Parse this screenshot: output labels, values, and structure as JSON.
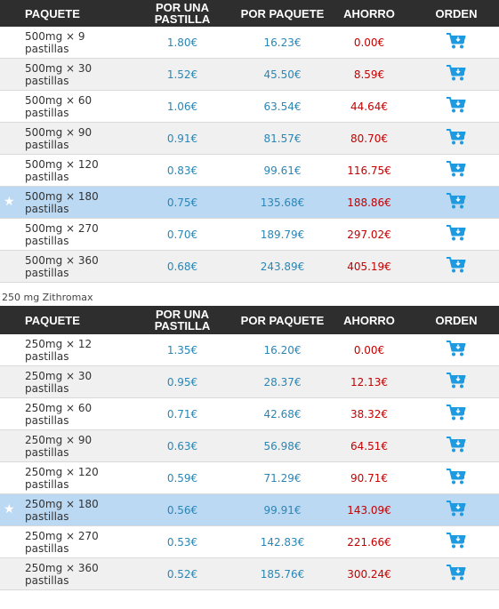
{
  "headers": {
    "package": "PAQUETE",
    "per_pill_line1": "POR UNA",
    "per_pill_line2": "PASTILLA",
    "per_package": "POR PAQUETE",
    "savings": "AHORRO",
    "order": "ORDEN"
  },
  "sections": [
    {
      "label": "",
      "rows": [
        {
          "package": "500mg × 9 pastillas",
          "per_pill": "1.80€",
          "per_package": "16.23€",
          "savings": "0.00€",
          "highlight": false
        },
        {
          "package": "500mg × 30 pastillas",
          "per_pill": "1.52€",
          "per_package": "45.50€",
          "savings": "8.59€",
          "highlight": false
        },
        {
          "package": "500mg × 60 pastillas",
          "per_pill": "1.06€",
          "per_package": "63.54€",
          "savings": "44.64€",
          "highlight": false
        },
        {
          "package": "500mg × 90 pastillas",
          "per_pill": "0.91€",
          "per_package": "81.57€",
          "savings": "80.70€",
          "highlight": false
        },
        {
          "package": "500mg × 120 pastillas",
          "per_pill": "0.83€",
          "per_package": "99.61€",
          "savings": "116.75€",
          "highlight": false
        },
        {
          "package": "500mg × 180 pastillas",
          "per_pill": "0.75€",
          "per_package": "135.68€",
          "savings": "188.86€",
          "highlight": true
        },
        {
          "package": "500mg × 270 pastillas",
          "per_pill": "0.70€",
          "per_package": "189.79€",
          "savings": "297.02€",
          "highlight": false
        },
        {
          "package": "500mg × 360 pastillas",
          "per_pill": "0.68€",
          "per_package": "243.89€",
          "savings": "405.19€",
          "highlight": false
        }
      ]
    },
    {
      "label": "250 mg Zithromax",
      "rows": [
        {
          "package": "250mg × 12 pastillas",
          "per_pill": "1.35€",
          "per_package": "16.20€",
          "savings": "0.00€",
          "highlight": false
        },
        {
          "package": "250mg × 30 pastillas",
          "per_pill": "0.95€",
          "per_package": "28.37€",
          "savings": "12.13€",
          "highlight": false
        },
        {
          "package": "250mg × 60 pastillas",
          "per_pill": "0.71€",
          "per_package": "42.68€",
          "savings": "38.32€",
          "highlight": false
        },
        {
          "package": "250mg × 90 pastillas",
          "per_pill": "0.63€",
          "per_package": "56.98€",
          "savings": "64.51€",
          "highlight": false
        },
        {
          "package": "250mg × 120 pastillas",
          "per_pill": "0.59€",
          "per_package": "71.29€",
          "savings": "90.71€",
          "highlight": false
        },
        {
          "package": "250mg × 180 pastillas",
          "per_pill": "0.56€",
          "per_package": "99.91€",
          "savings": "143.09€",
          "highlight": true
        },
        {
          "package": "250mg × 270 pastillas",
          "per_pill": "0.53€",
          "per_package": "142.83€",
          "savings": "221.66€",
          "highlight": false
        },
        {
          "package": "250mg × 360 pastillas",
          "per_pill": "0.52€",
          "per_package": "185.76€",
          "savings": "300.24€",
          "highlight": false
        }
      ]
    }
  ],
  "icons": {
    "cart": "shopping-cart-icon",
    "star": "star-icon"
  },
  "colors": {
    "header_bg": "#2e2e2e",
    "price_blue": "#2a86b5",
    "savings_red": "#c40000",
    "highlight_row": "#bcd9f3",
    "alt_row": "#f0f0f0",
    "cart_blue": "#1e9ae0"
  }
}
